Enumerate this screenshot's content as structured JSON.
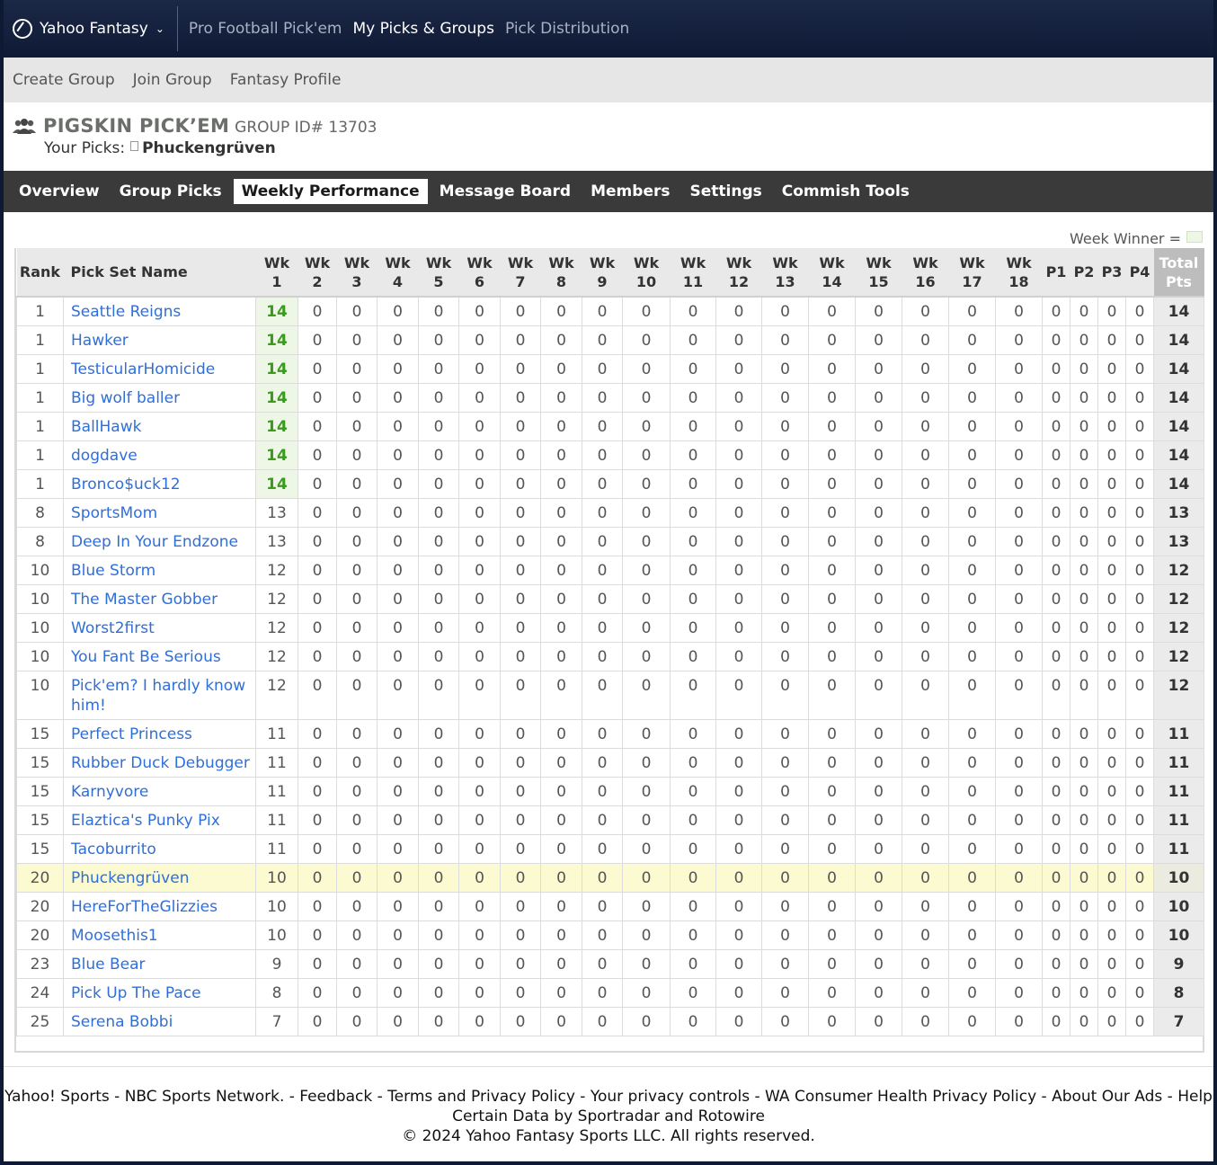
{
  "topnav": {
    "brand": "Yahoo Fantasy",
    "links": [
      {
        "label": "Pro Football Pick'em",
        "active": false
      },
      {
        "label": "My Picks & Groups",
        "active": true
      },
      {
        "label": "Pick Distribution",
        "active": false
      }
    ]
  },
  "subnav": {
    "items": [
      "Create Group",
      "Join Group",
      "Fantasy Profile"
    ]
  },
  "group": {
    "title": "PIGSKIN PICK’EM",
    "id_label": "GROUP ID# 13703",
    "your_picks_label": "Your Picks:",
    "your_picks_name": "Phuckengrüven"
  },
  "tabs": [
    {
      "label": "Overview",
      "active": false
    },
    {
      "label": "Group Picks",
      "active": false
    },
    {
      "label": "Weekly Performance",
      "active": true
    },
    {
      "label": "Message Board",
      "active": false
    },
    {
      "label": "Members",
      "active": false
    },
    {
      "label": "Settings",
      "active": false
    },
    {
      "label": "Commish Tools",
      "active": false
    }
  ],
  "week_winner_label": "Week Winner =",
  "table": {
    "headers": [
      "Rank",
      "Pick Set Name",
      "Wk\n1",
      "Wk\n2",
      "Wk\n3",
      "Wk\n4",
      "Wk\n5",
      "Wk\n6",
      "Wk\n7",
      "Wk\n8",
      "Wk\n9",
      "Wk\n10",
      "Wk\n11",
      "Wk\n12",
      "Wk\n13",
      "Wk\n14",
      "Wk\n15",
      "Wk\n16",
      "Wk\n17",
      "Wk\n18",
      "P1",
      "P2",
      "P3",
      "P4",
      "Total\nPts"
    ],
    "rows": [
      {
        "rank": "1",
        "name": "Seattle Reigns",
        "wk1": "14",
        "total": "14",
        "winner": true
      },
      {
        "rank": "1",
        "name": "Hawker",
        "wk1": "14",
        "total": "14",
        "winner": true
      },
      {
        "rank": "1",
        "name": "TesticularHomicide",
        "wk1": "14",
        "total": "14",
        "winner": true
      },
      {
        "rank": "1",
        "name": "Big wolf baller",
        "wk1": "14",
        "total": "14",
        "winner": true
      },
      {
        "rank": "1",
        "name": "BallHawk",
        "wk1": "14",
        "total": "14",
        "winner": true
      },
      {
        "rank": "1",
        "name": "dogdave",
        "wk1": "14",
        "total": "14",
        "winner": true
      },
      {
        "rank": "1",
        "name": "Bronco$uck12",
        "wk1": "14",
        "total": "14",
        "winner": true
      },
      {
        "rank": "8",
        "name": "SportsMom",
        "wk1": "13",
        "total": "13"
      },
      {
        "rank": "8",
        "name": "Deep In Your Endzone",
        "wk1": "13",
        "total": "13"
      },
      {
        "rank": "10",
        "name": "Blue Storm",
        "wk1": "12",
        "total": "12"
      },
      {
        "rank": "10",
        "name": "The Master Gobber",
        "wk1": "12",
        "total": "12"
      },
      {
        "rank": "10",
        "name": "Worst2first",
        "wk1": "12",
        "total": "12"
      },
      {
        "rank": "10",
        "name": "You Fant Be Serious",
        "wk1": "12",
        "total": "12"
      },
      {
        "rank": "10",
        "name": "Pick'em? I hardly know him!",
        "wk1": "12",
        "total": "12"
      },
      {
        "rank": "15",
        "name": "Perfect Princess",
        "wk1": "11",
        "total": "11"
      },
      {
        "rank": "15",
        "name": "Rubber Duck Debugger",
        "wk1": "11",
        "total": "11"
      },
      {
        "rank": "15",
        "name": "Karnyvore",
        "wk1": "11",
        "total": "11"
      },
      {
        "rank": "15",
        "name": "Elaztica's Punky Pix",
        "wk1": "11",
        "total": "11"
      },
      {
        "rank": "15",
        "name": "Tacoburrito",
        "wk1": "11",
        "total": "11"
      },
      {
        "rank": "20",
        "name": "Phuckengrüven",
        "wk1": "10",
        "total": "10",
        "me": true
      },
      {
        "rank": "20",
        "name": "HereForTheGlizzies",
        "wk1": "10",
        "total": "10"
      },
      {
        "rank": "20",
        "name": "Moosethis1",
        "wk1": "10",
        "total": "10"
      },
      {
        "rank": "23",
        "name": "Blue Bear",
        "wk1": "9",
        "total": "9"
      },
      {
        "rank": "24",
        "name": "Pick Up The Pace",
        "wk1": "8",
        "total": "8"
      },
      {
        "rank": "25",
        "name": "Serena Bobbi",
        "wk1": "7",
        "total": "7"
      }
    ],
    "zero_value": "0"
  },
  "footer": {
    "line1": "Yahoo! Sports - NBC Sports Network. - Feedback - Terms and Privacy Policy - Your privacy controls - WA Consumer Health Privacy Policy - About Our Ads - Help",
    "line2": "Certain Data by Sportradar and Rotowire",
    "line3": "© 2024 Yahoo Fantasy Sports LLC. All rights reserved."
  },
  "colors": {
    "link": "#2f6fd8",
    "winner_bg": "#eef7e6",
    "winner_text": "#3a9a1e",
    "me_row": "#fbfad0",
    "tabbar": "#3a3a3a"
  }
}
